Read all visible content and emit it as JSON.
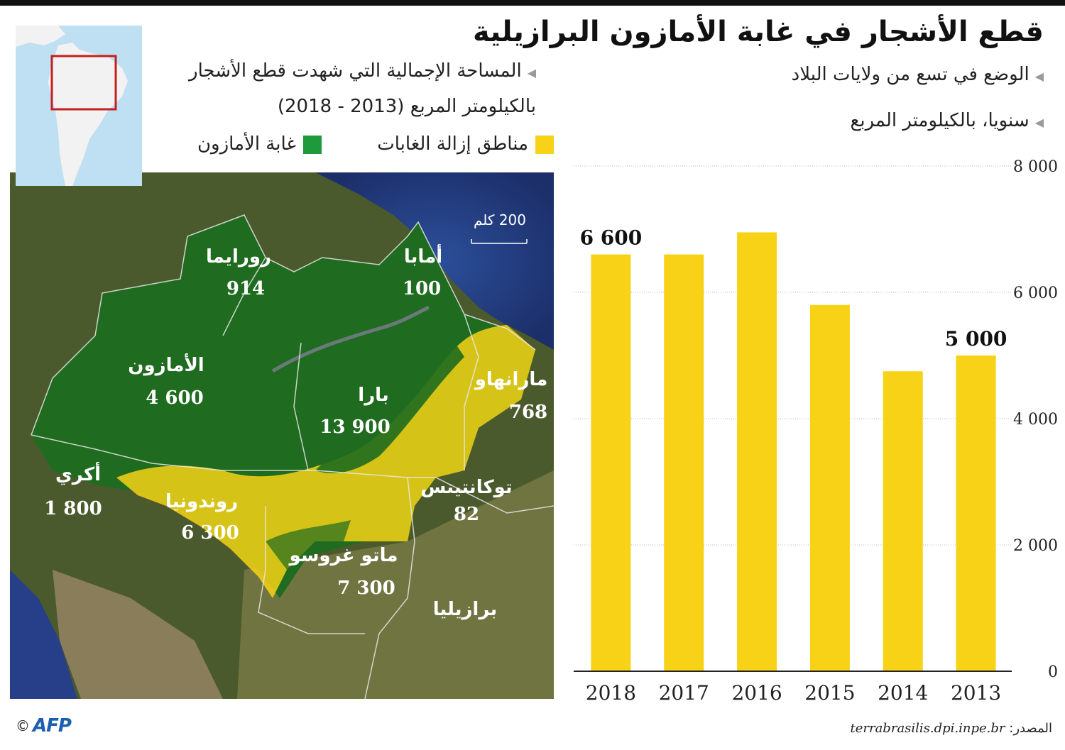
{
  "title": "قطع الأشجار في غابة الأمازون البرازيلية",
  "chart_subtitle": "الوضع في تسع من ولايات البلاد",
  "chart_unit_label": "سنويا، بالكيلومتر المربع",
  "map_caption_line1": "المساحة الإجمالية التي شهدت قطع الأشجار",
  "map_caption_line2": "بالكيلومتر المربع (2013 - 2018)",
  "legend": {
    "deforestation": "مناطق إزالة الغابات",
    "forest": "غابة الأمازون",
    "deforestation_color": "#f7d217",
    "forest_color": "#1d9a3c"
  },
  "scale_label": "200 كلم",
  "states": [
    {
      "name": "رورايما",
      "value": "914"
    },
    {
      "name": "أمابا",
      "value": "100"
    },
    {
      "name": "الأمازون",
      "value": "4 600"
    },
    {
      "name": "بارا",
      "value": "13 900"
    },
    {
      "name": "مارانهاو",
      "value": "768"
    },
    {
      "name": "أكري",
      "value": "1 800"
    },
    {
      "name": "روندونيا",
      "value": "6 300"
    },
    {
      "name": "توكانتينس",
      "value": "82"
    },
    {
      "name": "ماتو غروسو",
      "value": "7 300"
    }
  ],
  "country_label": "برازيليا",
  "chart_data": {
    "type": "bar",
    "categories": [
      "2018",
      "2017",
      "2016",
      "2015",
      "2014",
      "2013"
    ],
    "values": [
      6600,
      6600,
      6950,
      5800,
      4750,
      5000
    ],
    "data_labels": [
      {
        "category": "2018",
        "text": "6 600"
      },
      {
        "category": "2013",
        "text": "5 000"
      }
    ],
    "yticks": [
      0,
      2000,
      4000,
      6000,
      8000
    ],
    "ytick_labels": [
      "0",
      "2 000",
      "4 000",
      "6 000",
      "8 000"
    ],
    "ylim": [
      0,
      8000
    ],
    "bar_color": "#f7d217",
    "grid": true,
    "title": "",
    "xlabel": "",
    "ylabel": ""
  },
  "credit": {
    "copyright": "©",
    "agency": "AFP"
  },
  "source": {
    "label": "المصدر:",
    "url": "terrabrasilis.dpi.inpe.br"
  }
}
